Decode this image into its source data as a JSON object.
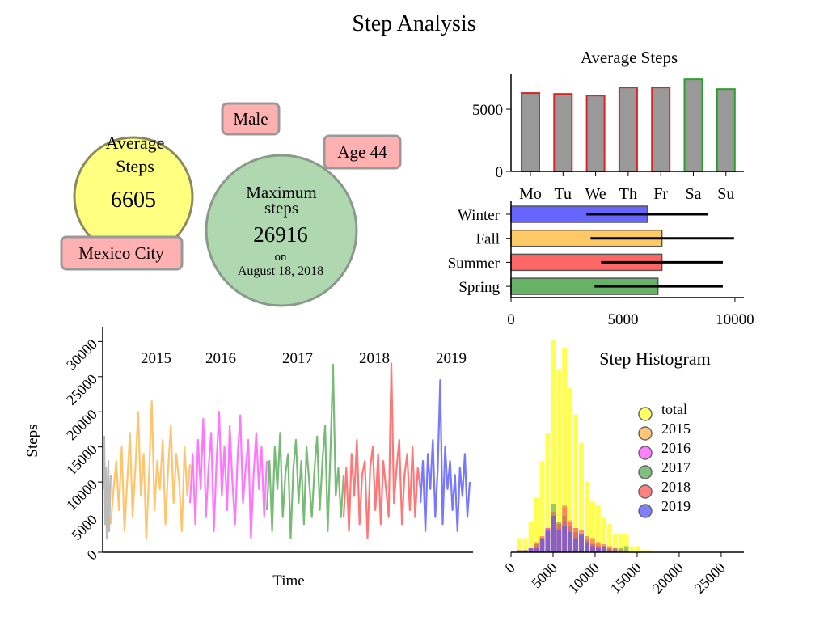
{
  "title": "Step Analysis",
  "info": {
    "average": {
      "label_line1": "Average",
      "label_line2": "Steps",
      "value": "6605",
      "color": "#ffff80"
    },
    "maximum": {
      "label_line1": "Maximum",
      "label_line2": "steps",
      "value": "26916",
      "on": "on",
      "date": "August 18, 2018",
      "color": "#b0d8b0"
    },
    "gender": "Male",
    "age": "Age 44",
    "city": "Mexico City",
    "tag_color": "#ffb0b0"
  },
  "chart_data": [
    {
      "type": "bar",
      "title": "Average Steps",
      "categories": [
        "Mo",
        "Tu",
        "We",
        "Th",
        "Fr",
        "Sa",
        "Su"
      ],
      "values": [
        6300,
        6230,
        6100,
        6750,
        6750,
        7400,
        6620
      ],
      "edge_colors": [
        "#d62728",
        "#d62728",
        "#d62728",
        "#d62728",
        "#d62728",
        "#2ca02c",
        "#2ca02c"
      ],
      "fill_color": "#999999",
      "yticks": [
        0,
        5000
      ],
      "ylim": [
        0,
        7800
      ]
    },
    {
      "type": "bar",
      "orientation": "horizontal",
      "categories": [
        "Winter",
        "Fall",
        "Summer",
        "Spring"
      ],
      "values": [
        6090,
        6740,
        6740,
        6560
      ],
      "error_low": [
        3370,
        3550,
        4020,
        3730
      ],
      "error_high": [
        8800,
        9960,
        9460,
        9460
      ],
      "colors": [
        "#6666ff",
        "#ffc966",
        "#ff6666",
        "#66b366"
      ],
      "xticks": [
        0,
        5000,
        10000
      ],
      "xlim": [
        0,
        10400
      ]
    },
    {
      "type": "line",
      "xlabel": "Time",
      "ylabel": "Steps",
      "yticks": [
        0,
        5000,
        10000,
        15000,
        20000,
        25000,
        30000
      ],
      "ylim": [
        0,
        32000
      ],
      "series": [
        {
          "year_label": "",
          "color": "#bbbbbb",
          "values": [
            9000,
            16500,
            4000,
            12000,
            2000,
            8000,
            13000,
            3000,
            7000,
            11000
          ]
        },
        {
          "year_label": "2015",
          "color": "#ffc56e",
          "values": [
            4000,
            9000,
            13000,
            6000,
            15000,
            3000,
            10000,
            17000,
            5000,
            12000,
            20000,
            8000,
            14000,
            2000,
            11000,
            21500,
            6000,
            13000,
            9000,
            16000,
            4000,
            12000,
            18000,
            7000,
            14000,
            10000,
            3000,
            15000,
            8000,
            12500
          ]
        },
        {
          "year_label": "2016",
          "color": "#ff77ff",
          "values": [
            7000,
            14000,
            4000,
            16000,
            9000,
            19000,
            5000,
            12000,
            17000,
            3000,
            13000,
            20000,
            8000,
            15000,
            6000,
            18000,
            10000,
            4000,
            14000,
            19500,
            7000,
            12000,
            16000,
            2000,
            11000,
            17000,
            9000,
            15000,
            5000,
            13000
          ]
        },
        {
          "year_label": "2017",
          "color": "#77bb77",
          "values": [
            6000,
            13000,
            3000,
            15000,
            9000,
            17000,
            5000,
            11000,
            14000,
            2000,
            12000,
            16000,
            7000,
            13000,
            4000,
            15000,
            10000,
            5000,
            12000,
            16500,
            6000,
            13000,
            18000,
            3000,
            14000,
            26700,
            8000,
            12000,
            5000,
            11000
          ]
        },
        {
          "year_label": "2018",
          "color": "#ff7777",
          "values": [
            5000,
            12000,
            3000,
            14000,
            8000,
            16000,
            4000,
            11000,
            13000,
            2000,
            12000,
            15000,
            6000,
            14000,
            4000,
            13000,
            9000,
            5000,
            26900,
            7000,
            12000,
            16000,
            4000,
            11000,
            14000,
            6000,
            15000,
            5000,
            12000,
            9000
          ]
        },
        {
          "year_label": "2019",
          "color": "#7777ff",
          "values": [
            7000,
            13000,
            3000,
            14000,
            9000,
            16000,
            5000,
            12000,
            24500,
            4000,
            15000,
            9000,
            13000,
            6000,
            11000,
            3000,
            12000,
            8000,
            14000,
            5000,
            10000
          ]
        }
      ]
    },
    {
      "type": "bar",
      "title": "Step Histogram",
      "bin_start": 700,
      "bin_width": 667,
      "xticks": [
        0,
        5000,
        10000,
        15000,
        20000,
        25000
      ],
      "xlim": [
        0,
        27700
      ],
      "legend_placement": "center-right",
      "series": [
        {
          "name": "total",
          "color": "#ffff33",
          "values": [
            7,
            7,
            15,
            27,
            45,
            59,
            105,
            90,
            101,
            81,
            68,
            54,
            35,
            25,
            23,
            17,
            14,
            9,
            9,
            9,
            3,
            3,
            1,
            1
          ]
        },
        {
          "name": "2015",
          "color": "#ffb347",
          "values": [
            0,
            1,
            2,
            4,
            6,
            10,
            18,
            14,
            22,
            16,
            12,
            9,
            7,
            5,
            4,
            3,
            2,
            1,
            1,
            0,
            0,
            0,
            0,
            0
          ]
        },
        {
          "name": "2016",
          "color": "#ff55ff",
          "values": [
            1,
            1,
            2,
            3,
            7,
            12,
            16,
            12,
            15,
            12,
            9,
            7,
            5,
            4,
            3,
            2,
            1,
            1,
            1,
            0,
            0,
            0,
            0,
            0
          ]
        },
        {
          "name": "2017",
          "color": "#55aa55",
          "values": [
            0,
            1,
            1,
            4,
            7,
            10,
            24,
            15,
            18,
            13,
            10,
            8,
            6,
            4,
            3,
            3,
            2,
            2,
            2,
            3,
            0,
            0,
            0,
            0
          ]
        },
        {
          "name": "2018",
          "color": "#ff5555",
          "values": [
            0,
            1,
            2,
            5,
            8,
            12,
            20,
            14,
            23,
            15,
            12,
            11,
            8,
            7,
            5,
            4,
            3,
            2,
            1,
            1,
            0,
            0,
            0,
            0
          ]
        },
        {
          "name": "2019",
          "color": "#5555ff",
          "values": [
            1,
            1,
            2,
            2,
            7,
            11,
            18,
            11,
            13,
            10,
            7,
            9,
            5,
            3,
            2,
            3,
            1,
            1,
            0,
            0,
            0,
            0,
            0,
            0
          ]
        }
      ]
    }
  ]
}
